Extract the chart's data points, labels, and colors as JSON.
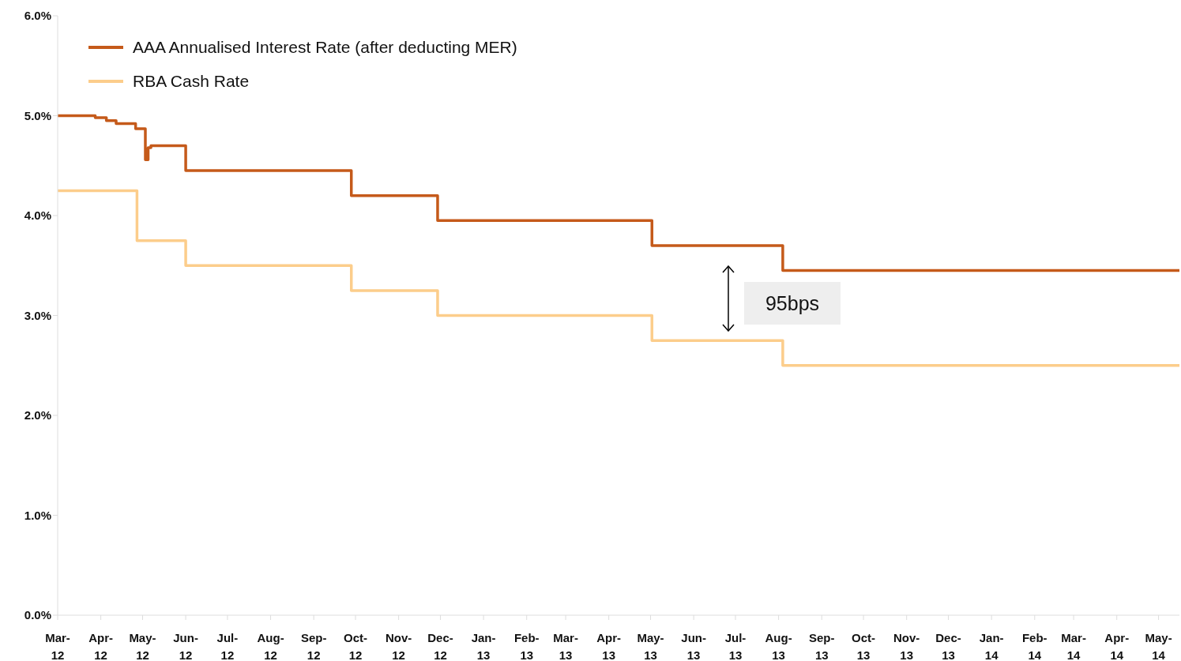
{
  "chart_data": {
    "type": "step",
    "series": [
      {
        "name": "AAA Annualised Interest Rate (after deducting MER)",
        "color": "#c55a1a",
        "x": [
          "2012-03-01",
          "2012-03-28",
          "2012-04-05",
          "2012-04-12",
          "2012-04-26",
          "2012-05-03",
          "2012-05-05",
          "2012-05-07",
          "2012-06-01",
          "2012-09-28",
          "2012-11-29",
          "2013-05-02",
          "2013-08-04",
          "2014-05-16"
        ],
        "values": [
          5.0,
          4.98,
          4.95,
          4.92,
          4.87,
          4.56,
          4.68,
          4.7,
          4.45,
          4.2,
          3.95,
          3.7,
          3.45,
          3.45
        ]
      },
      {
        "name": "RBA Cash Rate",
        "color": "#fccd8b",
        "x": [
          "2012-03-01",
          "2012-04-27",
          "2012-06-01",
          "2012-09-28",
          "2012-11-29",
          "2013-05-02",
          "2013-08-04",
          "2014-05-16"
        ],
        "values": [
          4.25,
          3.75,
          3.5,
          3.25,
          3.0,
          2.75,
          2.5,
          2.5
        ]
      }
    ],
    "xlim": [
      "2012-03-01",
      "2014-05-16"
    ],
    "xticks": [
      {
        "value": "2012-03",
        "label": "Mar-12"
      },
      {
        "value": "2012-04",
        "label": "Apr-12"
      },
      {
        "value": "2012-05",
        "label": "May-12"
      },
      {
        "value": "2012-06",
        "label": "Jun-12"
      },
      {
        "value": "2012-07",
        "label": "Jul-12"
      },
      {
        "value": "2012-08",
        "label": "Aug-12"
      },
      {
        "value": "2012-09",
        "label": "Sep-12"
      },
      {
        "value": "2012-10",
        "label": "Oct-12"
      },
      {
        "value": "2012-11",
        "label": "Nov-12"
      },
      {
        "value": "2012-12",
        "label": "Dec-12"
      },
      {
        "value": "2013-01",
        "label": "Jan-13"
      },
      {
        "value": "2013-02",
        "label": "Feb-13"
      },
      {
        "value": "2013-03",
        "label": "Mar-13"
      },
      {
        "value": "2013-04",
        "label": "Apr-13"
      },
      {
        "value": "2013-05",
        "label": "May-13"
      },
      {
        "value": "2013-06",
        "label": "Jun-13"
      },
      {
        "value": "2013-07",
        "label": "Jul-13"
      },
      {
        "value": "2013-08",
        "label": "Aug-13"
      },
      {
        "value": "2013-09",
        "label": "Sep-13"
      },
      {
        "value": "2013-10",
        "label": "Oct-13"
      },
      {
        "value": "2013-11",
        "label": "Nov-13"
      },
      {
        "value": "2013-12",
        "label": "Dec-13"
      },
      {
        "value": "2014-01",
        "label": "Jan-14"
      },
      {
        "value": "2014-02",
        "label": "Feb-14"
      },
      {
        "value": "2014-03",
        "label": "Mar-14"
      },
      {
        "value": "2014-04",
        "label": "Apr-14"
      },
      {
        "value": "2014-05",
        "label": "May-14"
      }
    ],
    "ylim": [
      0,
      6
    ],
    "yticks": [
      {
        "value": 0,
        "label": "0.0%"
      },
      {
        "value": 1,
        "label": "1.0%"
      },
      {
        "value": 2,
        "label": "2.0%"
      },
      {
        "value": 3,
        "label": "3.0%"
      },
      {
        "value": 4,
        "label": "4.0%"
      },
      {
        "value": 5,
        "label": "5.0%"
      },
      {
        "value": 6,
        "label": "6.0%"
      }
    ],
    "annotations": [
      "95bps"
    ],
    "legend": "top left"
  }
}
